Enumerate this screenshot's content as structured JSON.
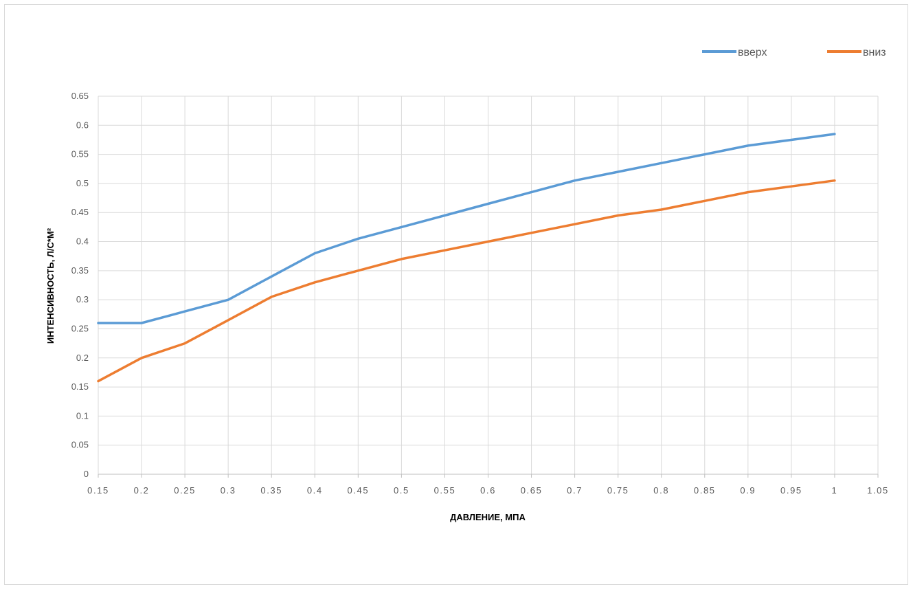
{
  "chart_data": {
    "type": "line",
    "xlabel": "ДАВЛЕНИЕ, МПА",
    "ylabel": "ИНТЕНСИВНОСТЬ, Л/С*М²",
    "xlim": [
      0.15,
      1.05
    ],
    "ylim": [
      0,
      0.65
    ],
    "x_ticks": [
      "0.15",
      "0.2",
      "0.25",
      "0.3",
      "0.35",
      "0.4",
      "0.45",
      "0.5",
      "0.55",
      "0.6",
      "0.65",
      "0.7",
      "0.75",
      "0.8",
      "0.85",
      "0.9",
      "0.95",
      "1",
      "1.05"
    ],
    "y_ticks": [
      "0",
      "0.05",
      "0.1",
      "0.15",
      "0.2",
      "0.25",
      "0.3",
      "0.35",
      "0.4",
      "0.45",
      "0.5",
      "0.55",
      "0.6",
      "0.65"
    ],
    "grid": true,
    "legend_position": "top-right",
    "series": [
      {
        "name": "вверх",
        "color": "#5b9bd5",
        "x": [
          0.15,
          0.2,
          0.25,
          0.3,
          0.35,
          0.4,
          0.45,
          0.5,
          0.55,
          0.6,
          0.65,
          0.7,
          0.75,
          0.8,
          0.85,
          0.9,
          0.95,
          1.0
        ],
        "y": [
          0.26,
          0.26,
          0.28,
          0.3,
          0.34,
          0.38,
          0.405,
          0.425,
          0.445,
          0.465,
          0.485,
          0.505,
          0.52,
          0.535,
          0.55,
          0.565,
          0.575,
          0.585
        ]
      },
      {
        "name": "вниз",
        "color": "#ed7d31",
        "x": [
          0.15,
          0.2,
          0.25,
          0.3,
          0.35,
          0.4,
          0.45,
          0.5,
          0.55,
          0.6,
          0.65,
          0.7,
          0.75,
          0.8,
          0.85,
          0.9,
          0.95,
          1.0
        ],
        "y": [
          0.16,
          0.2,
          0.225,
          0.265,
          0.305,
          0.33,
          0.35,
          0.37,
          0.385,
          0.4,
          0.415,
          0.43,
          0.445,
          0.455,
          0.47,
          0.485,
          0.495,
          0.505
        ]
      }
    ]
  }
}
